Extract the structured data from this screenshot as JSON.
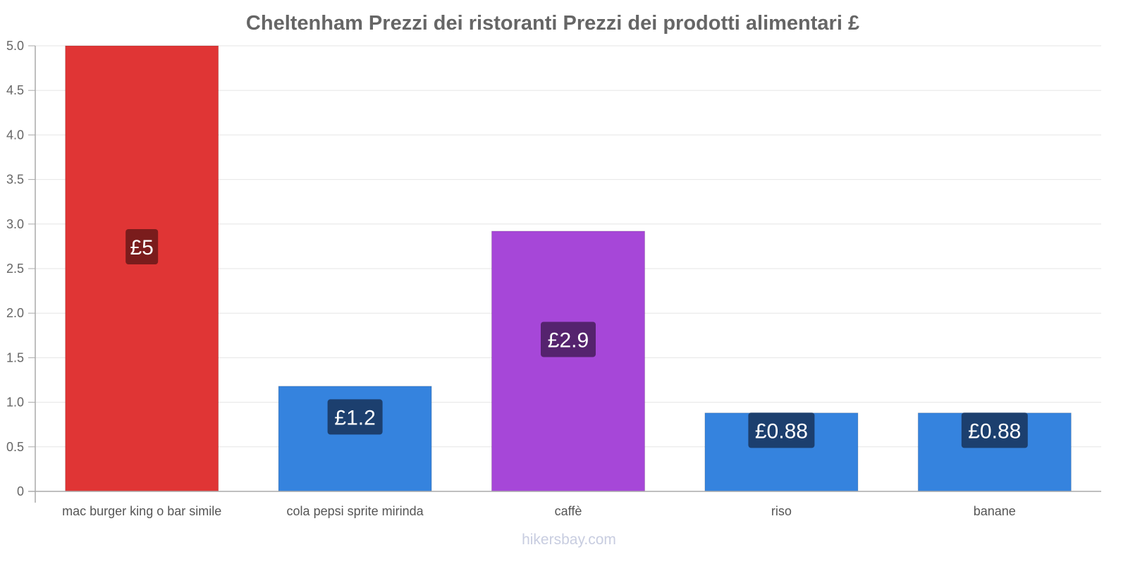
{
  "chart_data": {
    "type": "bar",
    "title": "Cheltenham Prezzi dei ristoranti Prezzi dei prodotti alimentari £",
    "xlabel": "",
    "ylabel": "",
    "ylim": [
      0,
      5
    ],
    "yticks": [
      "0",
      "0.5",
      "1.0",
      "1.5",
      "2.0",
      "2.5",
      "3.0",
      "3.5",
      "4.0",
      "4.5",
      "5.0"
    ],
    "grid": true,
    "categories": [
      "mac burger king o bar simile",
      "cola pepsi sprite mirinda",
      "caffè",
      "riso",
      "banane"
    ],
    "values": [
      5,
      1.18,
      2.92,
      0.88,
      0.88
    ],
    "data_labels": [
      "£5",
      "£1.2",
      "£2.9",
      "£0.88",
      "£0.88"
    ],
    "colors": [
      "#e03535",
      "#3583de",
      "#a647d8",
      "#3583de",
      "#3583de"
    ],
    "label_colors": [
      "#7a1c1c",
      "#1c3f6e",
      "#55236e",
      "#1c3f6e",
      "#1c3f6e"
    ]
  },
  "watermark": "hikersbay.com"
}
